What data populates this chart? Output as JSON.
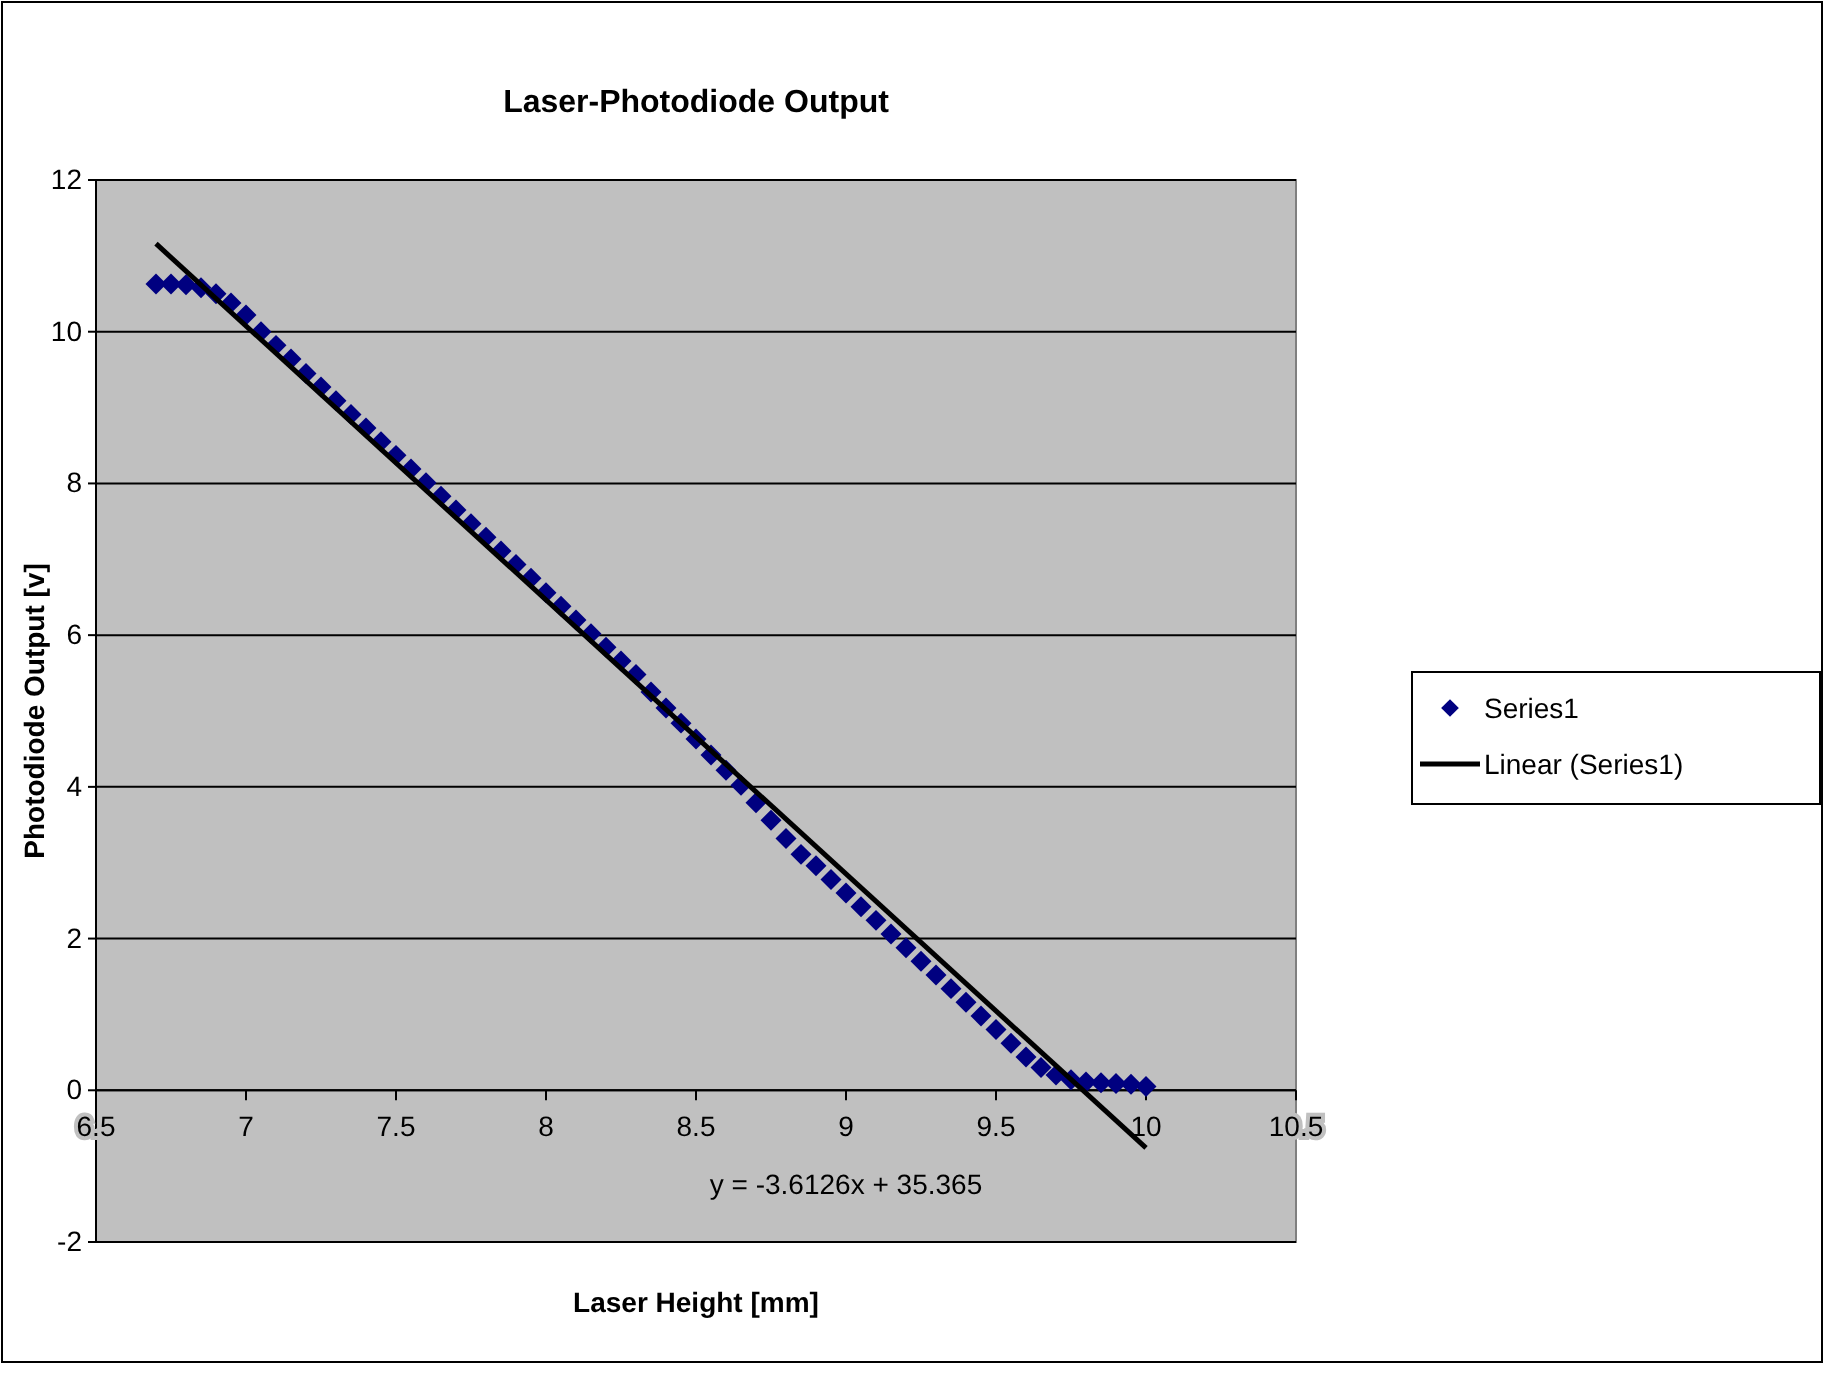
{
  "chart_data": {
    "type": "scatter",
    "title": "Laser-Photodiode Output",
    "xlabel": "Laser Height [mm]",
    "ylabel": "Photodiode Output [v]",
    "xlim": [
      6.5,
      10.5
    ],
    "xticks": [
      6.5,
      7,
      7.5,
      8,
      8.5,
      9,
      9.5,
      10,
      10.5
    ],
    "ylim": [
      -2,
      12
    ],
    "yticks": [
      -2,
      0,
      2,
      4,
      6,
      8,
      10,
      12
    ],
    "grid": "y",
    "legend": "right",
    "marker": "diamond",
    "annotations": [
      "y = -3.6126x + 35.365"
    ],
    "series": [
      {
        "name": "Series1",
        "color": "#000080",
        "x": [
          6.7,
          6.75,
          6.8,
          6.85,
          6.9,
          6.95,
          7.0,
          7.05,
          7.1,
          7.15,
          7.2,
          7.25,
          7.3,
          7.35,
          7.4,
          7.45,
          7.5,
          7.55,
          7.6,
          7.65,
          7.7,
          7.75,
          7.8,
          7.85,
          7.9,
          7.95,
          8.0,
          8.05,
          8.1,
          8.15,
          8.2,
          8.25,
          8.3,
          8.35,
          8.4,
          8.45,
          8.5,
          8.55,
          8.6,
          8.65,
          8.7,
          8.75,
          8.8,
          8.85,
          8.9,
          8.95,
          9.0,
          9.05,
          9.1,
          9.15,
          9.2,
          9.25,
          9.3,
          9.35,
          9.4,
          9.45,
          9.5,
          9.55,
          9.6,
          9.65,
          9.7,
          9.75,
          9.8,
          9.85,
          9.9,
          9.95,
          10.0
        ],
        "values": [
          10.63,
          10.63,
          10.62,
          10.58,
          10.5,
          10.38,
          10.22,
          10.0,
          9.82,
          9.64,
          9.45,
          9.27,
          9.09,
          8.91,
          8.73,
          8.55,
          8.37,
          8.19,
          8.01,
          7.83,
          7.65,
          7.47,
          7.29,
          7.11,
          6.93,
          6.75,
          6.56,
          6.38,
          6.2,
          6.02,
          5.84,
          5.66,
          5.48,
          5.25,
          5.04,
          4.84,
          4.63,
          4.42,
          4.22,
          4.02,
          3.79,
          3.56,
          3.32,
          3.11,
          2.96,
          2.78,
          2.6,
          2.42,
          2.24,
          2.06,
          1.88,
          1.7,
          1.52,
          1.34,
          1.16,
          0.98,
          0.8,
          0.62,
          0.44,
          0.3,
          0.2,
          0.14,
          0.11,
          0.1,
          0.09,
          0.08,
          0.05
        ]
      },
      {
        "name": "Linear (Series1)",
        "type": "line",
        "color": "#000000",
        "marker": "none",
        "x": [
          6.7,
          10.0
        ],
        "values": [
          11.16,
          -0.76
        ]
      }
    ]
  }
}
